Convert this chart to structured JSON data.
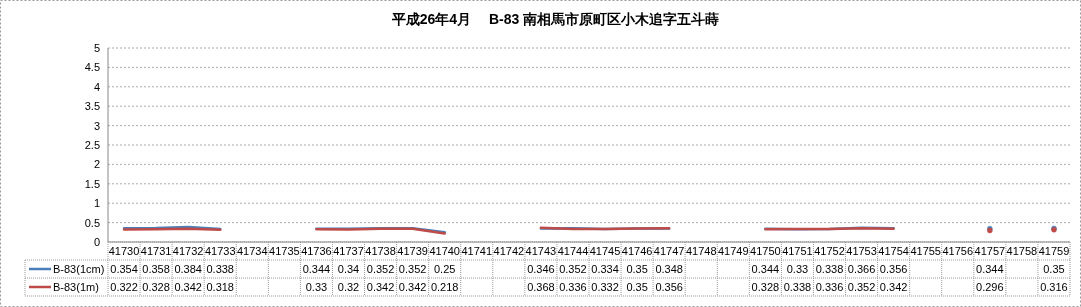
{
  "chart_data": {
    "type": "line",
    "title": "平成26年4月　 B-83 南相馬市原町区小木追字五斗蒔",
    "categories": [
      "41730",
      "41731",
      "41732",
      "41733",
      "41734",
      "41735",
      "41736",
      "41737",
      "41738",
      "41739",
      "41740",
      "41741",
      "41742",
      "41743",
      "41744",
      "41745",
      "41746",
      "41747",
      "41748",
      "41749",
      "41750",
      "41751",
      "41752",
      "41753",
      "41754",
      "41755",
      "41756",
      "41757",
      "41758",
      "41759"
    ],
    "series": [
      {
        "name": "B-83(1cm)",
        "color": "#4a7ebb",
        "values": [
          0.354,
          0.358,
          0.384,
          0.338,
          null,
          null,
          0.344,
          0.34,
          0.352,
          0.352,
          0.25,
          null,
          null,
          0.346,
          0.352,
          0.334,
          0.35,
          0.348,
          null,
          null,
          0.344,
          0.33,
          0.338,
          0.366,
          0.356,
          null,
          null,
          0.344,
          null,
          0.35
        ]
      },
      {
        "name": "B-83(1m)",
        "color": "#be4b48",
        "values": [
          0.322,
          0.328,
          0.342,
          0.318,
          null,
          null,
          0.33,
          0.32,
          0.342,
          0.342,
          0.218,
          null,
          null,
          0.368,
          0.336,
          0.332,
          0.35,
          0.356,
          null,
          null,
          0.328,
          0.338,
          0.336,
          0.352,
          0.342,
          null,
          null,
          0.296,
          null,
          0.316
        ]
      }
    ],
    "ylim": [
      0,
      5
    ],
    "yticks": [
      0,
      0.5,
      1,
      1.5,
      2,
      2.5,
      3,
      3.5,
      4,
      4.5,
      5
    ],
    "grid": "y",
    "legend": "bottom",
    "data_labels": true
  }
}
